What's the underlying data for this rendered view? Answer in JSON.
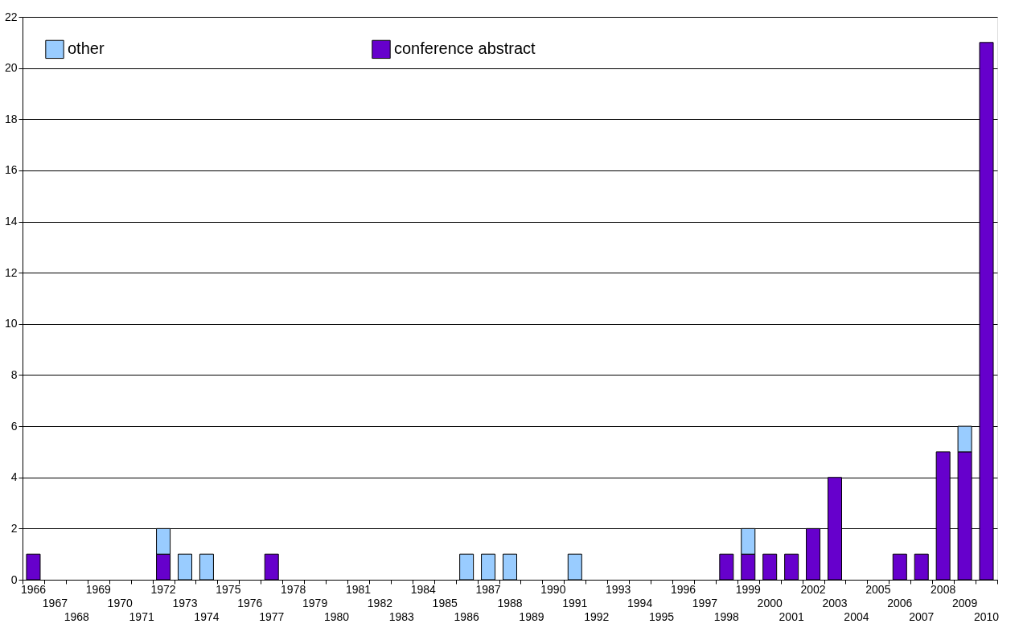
{
  "chart_data": {
    "type": "bar",
    "stacked": true,
    "categories": [
      "1966",
      "1967",
      "1968",
      "1969",
      "1970",
      "1971",
      "1972",
      "1973",
      "1974",
      "1975",
      "1976",
      "1977",
      "1978",
      "1979",
      "1980",
      "1981",
      "1982",
      "1983",
      "1984",
      "1985",
      "1986",
      "1987",
      "1988",
      "1989",
      "1990",
      "1991",
      "1992",
      "1993",
      "1994",
      "1995",
      "1996",
      "1997",
      "1998",
      "1999",
      "2000",
      "2001",
      "2002",
      "2003",
      "2004",
      "2005",
      "2006",
      "2007",
      "2008",
      "2009",
      "2010"
    ],
    "series": [
      {
        "name": "conference abstract",
        "color": "#6600cc",
        "values": [
          1,
          0,
          0,
          0,
          0,
          0,
          1,
          0,
          0,
          0,
          0,
          1,
          0,
          0,
          0,
          0,
          0,
          0,
          0,
          0,
          0,
          0,
          0,
          0,
          0,
          0,
          0,
          0,
          0,
          0,
          0,
          0,
          1,
          1,
          1,
          1,
          2,
          4,
          0,
          0,
          1,
          1,
          5,
          5,
          21
        ]
      },
      {
        "name": "other",
        "color": "#99ccff",
        "values": [
          0,
          0,
          0,
          0,
          0,
          0,
          1,
          1,
          1,
          0,
          0,
          0,
          0,
          0,
          0,
          0,
          0,
          0,
          0,
          0,
          1,
          1,
          1,
          0,
          0,
          1,
          0,
          0,
          0,
          0,
          0,
          0,
          0,
          1,
          0,
          0,
          0,
          0,
          0,
          0,
          0,
          0,
          0,
          1,
          0
        ]
      }
    ],
    "ylim": [
      0,
      22
    ],
    "yticks": [
      0,
      2,
      4,
      6,
      8,
      10,
      12,
      14,
      16,
      18,
      20,
      22
    ],
    "grid": "y",
    "legend": "top left"
  }
}
